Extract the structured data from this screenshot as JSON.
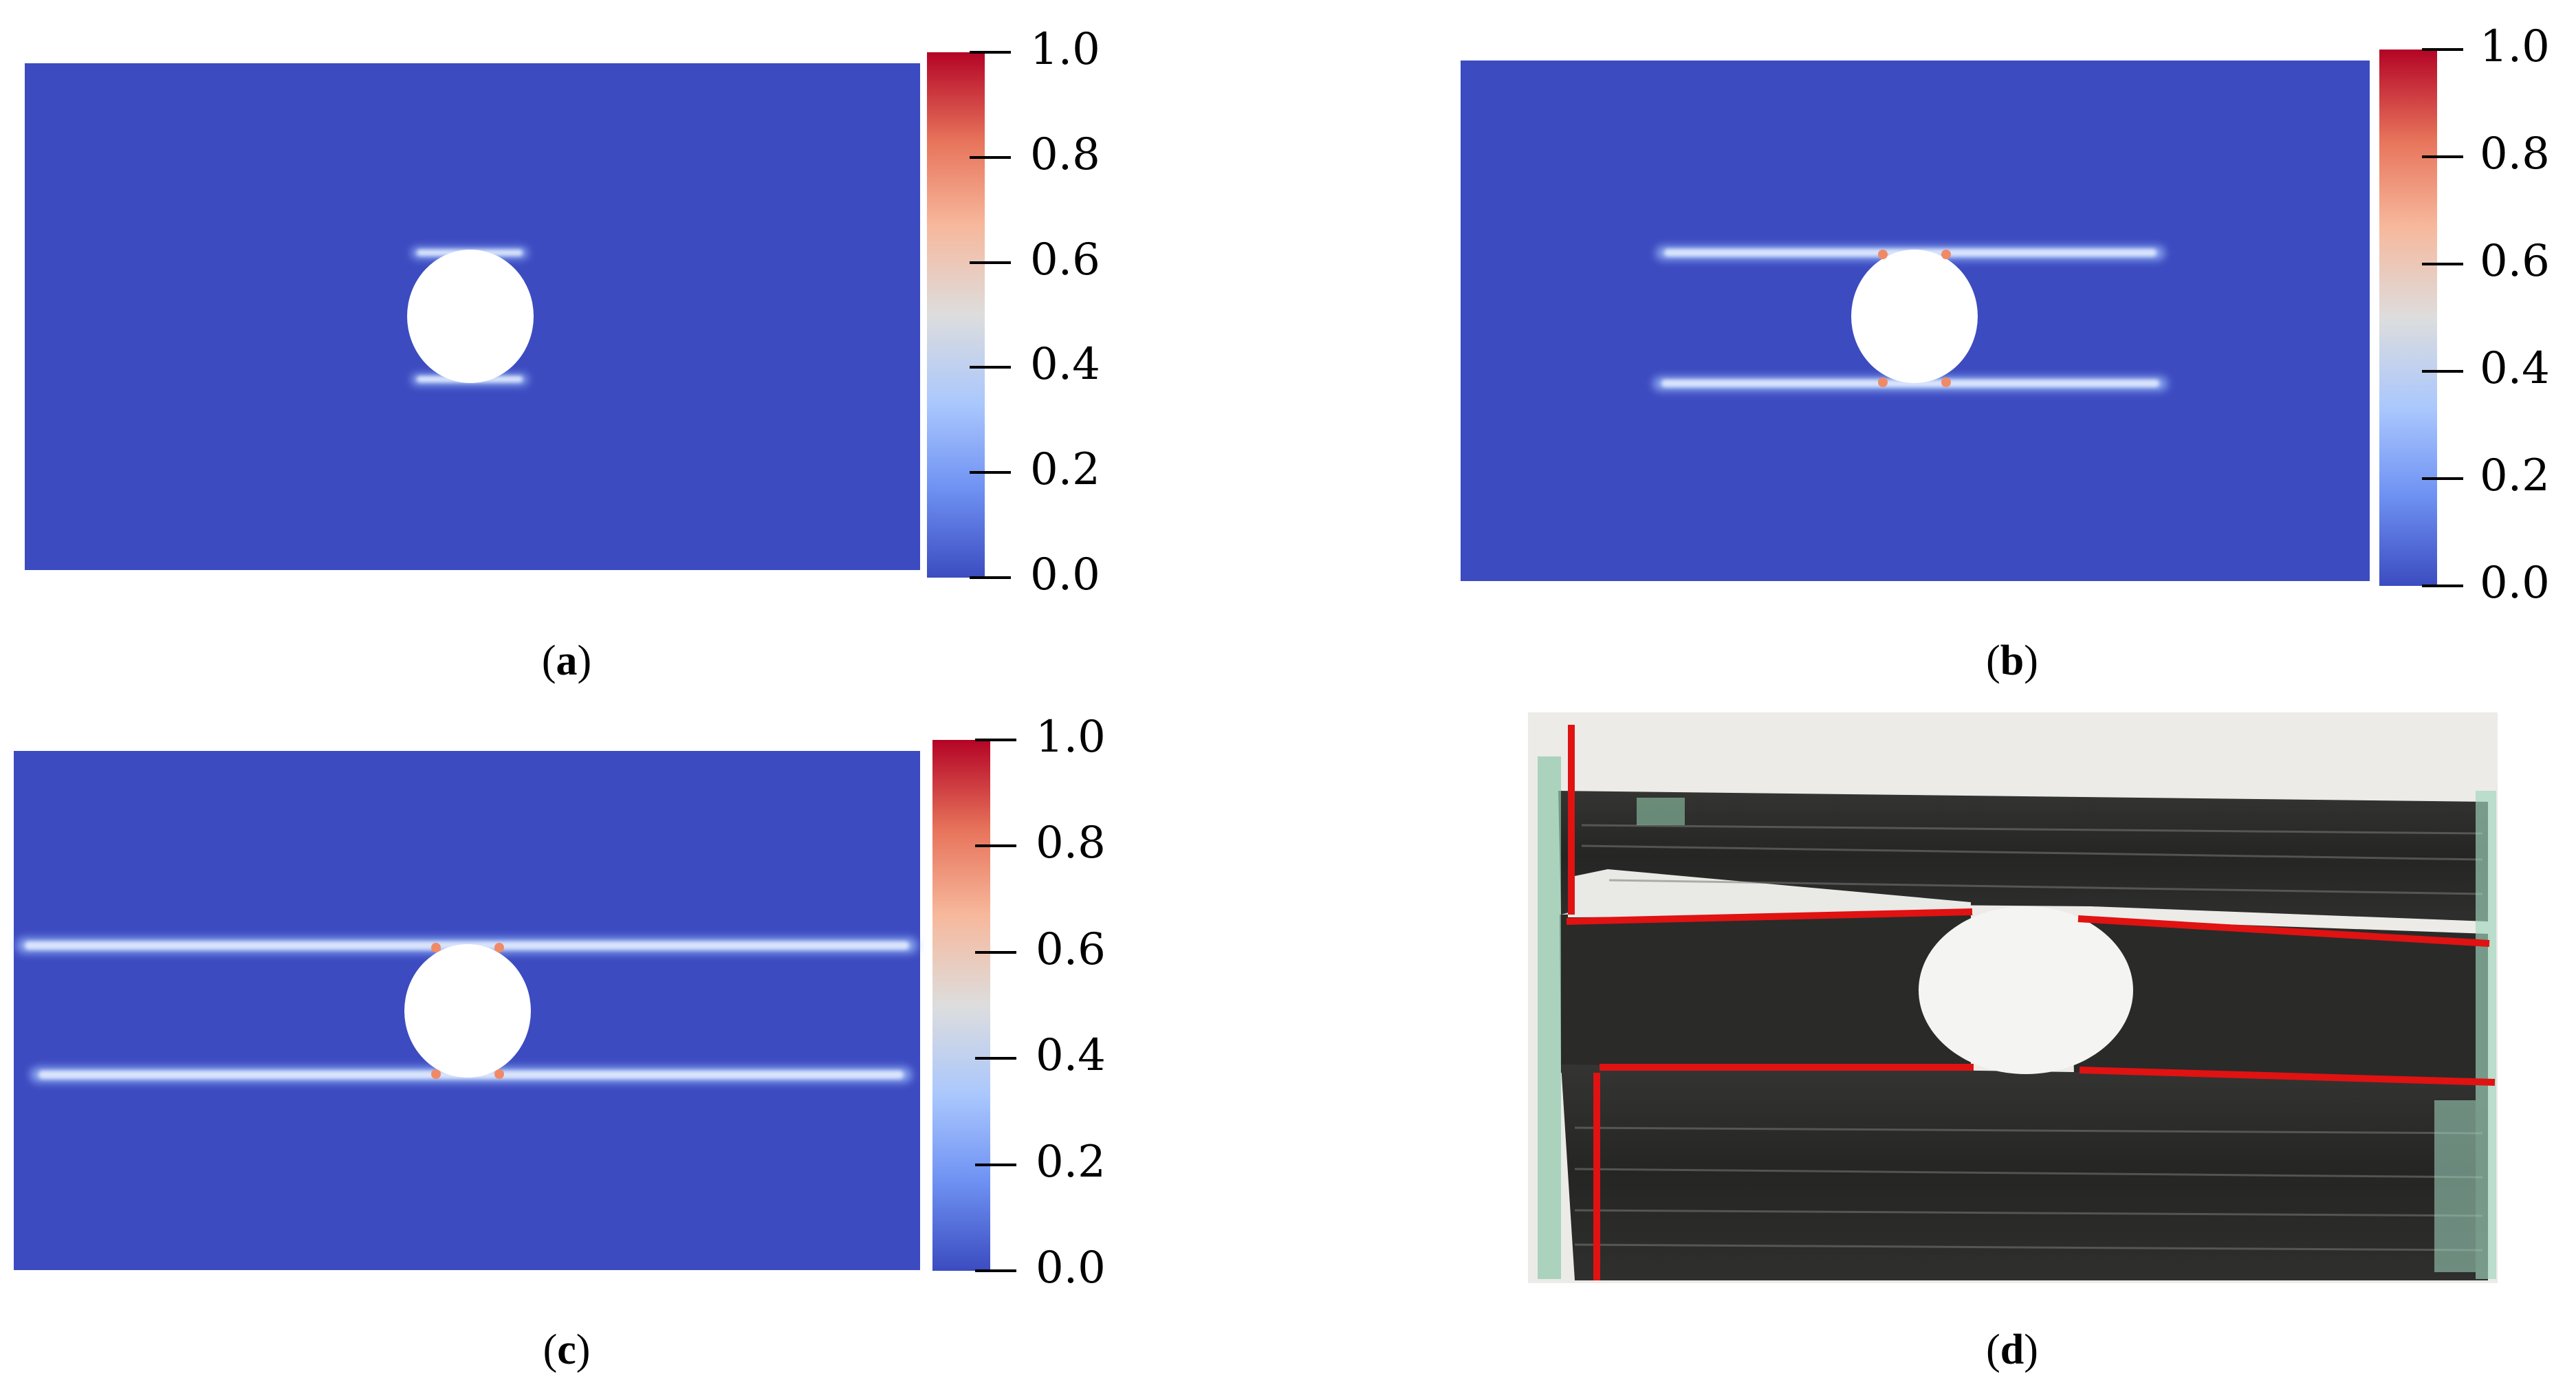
{
  "colorbar": {
    "ticks": [
      "1.0",
      "0.8",
      "0.6",
      "0.4",
      "0.2",
      "0.0"
    ],
    "colormap": [
      "#3b4cc0",
      "#6f92f3",
      "#aac7fd",
      "#dddddd",
      "#f7b89c",
      "#e7745b",
      "#b40426"
    ]
  },
  "panels": [
    {
      "id": "a",
      "caption": "a",
      "kind": "simulation",
      "crack_stage": "initial"
    },
    {
      "id": "b",
      "caption": "b",
      "kind": "simulation",
      "crack_stage": "intermediate"
    },
    {
      "id": "c",
      "caption": "c",
      "kind": "simulation",
      "crack_stage": "full"
    },
    {
      "id": "d",
      "caption": "d",
      "kind": "photograph"
    }
  ],
  "colors": {
    "plate": "#3c4bc0",
    "crack_core": "#dbe6fb",
    "crack_glow": "#8aa6f0",
    "hot_spot": "#f08a66",
    "photo_dark": "#2b2b2a",
    "photo_red_line": "#e01212"
  }
}
